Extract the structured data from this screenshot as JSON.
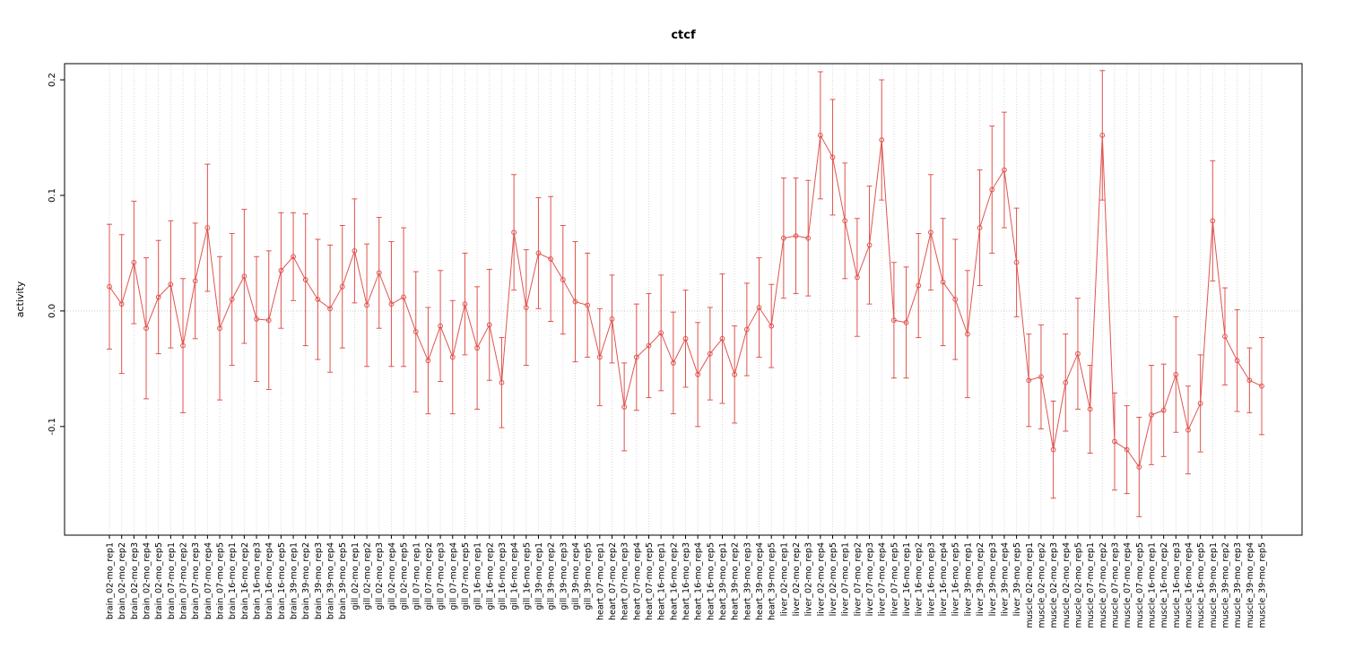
{
  "window": {
    "background": "#ffffff"
  },
  "chart_data": {
    "type": "line",
    "title": "ctcf",
    "xlabel": "",
    "ylabel": "activity",
    "legend": "none",
    "ylim": [
      -0.194,
      0.214
    ],
    "yticks": {
      "values": [
        -0.1,
        0.0,
        0.1,
        0.2
      ],
      "labels": [
        "-0.1",
        "0.0",
        "0.1",
        "0.2"
      ]
    },
    "grid": {
      "vertical_dotted_per_category": true,
      "horizontal_zero_line": true
    },
    "point_style": "open-circle-with-error-bars",
    "colors": {
      "series": "#e0544f",
      "grid": "#d9d9d9",
      "zero_line": "#cccccc",
      "axis": "#000000"
    },
    "categories": [
      "brain_02-mo_rep1",
      "brain_02-mo_rep2",
      "brain_02-mo_rep3",
      "brain_02-mo_rep4",
      "brain_02-mo_rep5",
      "brain_07-mo_rep1",
      "brain_07-mo_rep2",
      "brain_07-mo_rep3",
      "brain_07-mo_rep4",
      "brain_07-mo_rep5",
      "brain_16-mo_rep1",
      "brain_16-mo_rep2",
      "brain_16-mo_rep3",
      "brain_16-mo_rep4",
      "brain_16-mo_rep5",
      "brain_39-mo_rep1",
      "brain_39-mo_rep2",
      "brain_39-mo_rep3",
      "brain_39-mo_rep4",
      "brain_39-mo_rep5",
      "gill_02-mo_rep1",
      "gill_02-mo_rep2",
      "gill_02-mo_rep3",
      "gill_02-mo_rep4",
      "gill_02-mo_rep5",
      "gill_07-mo_rep1",
      "gill_07-mo_rep2",
      "gill_07-mo_rep3",
      "gill_07-mo_rep4",
      "gill_07-mo_rep5",
      "gill_16-mo_rep1",
      "gill_16-mo_rep2",
      "gill_16-mo_rep3",
      "gill_16-mo_rep4",
      "gill_16-mo_rep5",
      "gill_39-mo_rep1",
      "gill_39-mo_rep2",
      "gill_39-mo_rep3",
      "gill_39-mo_rep4",
      "gill_39-mo_rep5",
      "heart_07-mo_rep1",
      "heart_07-mo_rep2",
      "heart_07-mo_rep3",
      "heart_07-mo_rep4",
      "heart_07-mo_rep5",
      "heart_16-mo_rep1",
      "heart_16-mo_rep2",
      "heart_16-mo_rep3",
      "heart_16-mo_rep4",
      "heart_16-mo_rep5",
      "heart_39-mo_rep1",
      "heart_39-mo_rep2",
      "heart_39-mo_rep3",
      "heart_39-mo_rep4",
      "heart_39-mo_rep5",
      "liver_02-mo_rep1",
      "liver_02-mo_rep2",
      "liver_02-mo_rep3",
      "liver_02-mo_rep4",
      "liver_02-mo_rep5",
      "liver_07-mo_rep1",
      "liver_07-mo_rep2",
      "liver_07-mo_rep3",
      "liver_07-mo_rep4",
      "liver_07-mo_rep5",
      "liver_16-mo_rep1",
      "liver_16-mo_rep2",
      "liver_16-mo_rep3",
      "liver_16-mo_rep4",
      "liver_16-mo_rep5",
      "liver_39-mo_rep1",
      "liver_39-mo_rep2",
      "liver_39-mo_rep3",
      "liver_39-mo_rep4",
      "liver_39-mo_rep5",
      "muscle_02-mo_rep1",
      "muscle_02-mo_rep2",
      "muscle_02-mo_rep3",
      "muscle_02-mo_rep4",
      "muscle_02-mo_rep5",
      "muscle_07-mo_rep1",
      "muscle_07-mo_rep2",
      "muscle_07-mo_rep3",
      "muscle_07-mo_rep4",
      "muscle_07-mo_rep5",
      "muscle_16-mo_rep1",
      "muscle_16-mo_rep2",
      "muscle_16-mo_rep3",
      "muscle_16-mo_rep4",
      "muscle_16-mo_rep5",
      "muscle_39-mo_rep1",
      "muscle_39-mo_rep2",
      "muscle_39-mo_rep3",
      "muscle_39-mo_rep4",
      "muscle_39-mo_rep5"
    ],
    "series": [
      {
        "name": "ctcf activity",
        "values": [
          0.021,
          0.006,
          0.042,
          -0.015,
          0.012,
          0.023,
          -0.03,
          0.026,
          0.072,
          -0.015,
          0.01,
          0.03,
          -0.007,
          -0.008,
          0.035,
          0.047,
          0.027,
          0.01,
          0.002,
          0.021,
          0.052,
          0.005,
          0.033,
          0.006,
          0.012,
          -0.018,
          -0.043,
          -0.013,
          -0.04,
          0.006,
          -0.032,
          -0.012,
          -0.062,
          0.068,
          0.003,
          0.05,
          0.045,
          0.027,
          0.008,
          0.005,
          -0.04,
          -0.007,
          -0.083,
          -0.04,
          -0.03,
          -0.019,
          -0.045,
          -0.024,
          -0.055,
          -0.037,
          -0.024,
          -0.055,
          -0.016,
          0.003,
          -0.013,
          0.063,
          0.065,
          0.063,
          0.152,
          0.133,
          0.078,
          0.029,
          0.057,
          0.148,
          -0.008,
          -0.01,
          0.022,
          0.068,
          0.025,
          0.01,
          -0.02,
          0.072,
          0.105,
          0.122,
          0.042,
          -0.06,
          -0.057,
          -0.12,
          -0.062,
          -0.037,
          -0.085,
          0.152,
          -0.113,
          -0.12,
          -0.135,
          -0.09,
          -0.086,
          -0.055,
          -0.103,
          -0.08,
          0.078,
          -0.022,
          -0.043,
          -0.06,
          -0.065
        ],
        "error": [
          0.054,
          0.06,
          0.053,
          0.061,
          0.049,
          0.055,
          0.058,
          0.05,
          0.055,
          0.062,
          0.057,
          0.058,
          0.054,
          0.06,
          0.05,
          0.038,
          0.057,
          0.052,
          0.055,
          0.053,
          0.045,
          0.053,
          0.048,
          0.054,
          0.06,
          0.052,
          0.046,
          0.048,
          0.049,
          0.044,
          0.053,
          0.048,
          0.039,
          0.05,
          0.05,
          0.048,
          0.054,
          0.047,
          0.052,
          0.045,
          0.042,
          0.038,
          0.038,
          0.046,
          0.045,
          0.05,
          0.044,
          0.042,
          0.045,
          0.04,
          0.056,
          0.042,
          0.04,
          0.043,
          0.036,
          0.052,
          0.05,
          0.05,
          0.055,
          0.05,
          0.05,
          0.051,
          0.051,
          0.052,
          0.05,
          0.048,
          0.045,
          0.05,
          0.055,
          0.052,
          0.055,
          0.05,
          0.055,
          0.05,
          0.047,
          0.04,
          0.045,
          0.042,
          0.042,
          0.048,
          0.038,
          0.056,
          0.042,
          0.038,
          0.043,
          0.043,
          0.04,
          0.05,
          0.038,
          0.042,
          0.052,
          0.042,
          0.044,
          0.028,
          0.042
        ]
      }
    ]
  }
}
